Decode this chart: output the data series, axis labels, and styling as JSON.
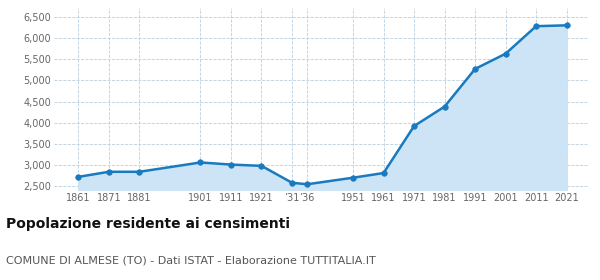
{
  "years": [
    1861,
    1871,
    1881,
    1901,
    1911,
    1921,
    1931,
    1936,
    1951,
    1961,
    1971,
    1981,
    1991,
    2001,
    2011,
    2021
  ],
  "population": [
    2720,
    2840,
    2840,
    3060,
    3010,
    2980,
    2580,
    2545,
    2700,
    2810,
    3920,
    4380,
    5270,
    5630,
    6280,
    6300
  ],
  "line_color": "#1a7abf",
  "fill_color": "#cce4f5",
  "marker_color": "#1a7abf",
  "bg_color": "#ffffff",
  "grid_color": "#b8cfe0",
  "ylim": [
    2400,
    6700
  ],
  "yticks": [
    2500,
    3000,
    3500,
    4000,
    4500,
    5000,
    5500,
    6000,
    6500
  ],
  "ytick_labels": [
    "2,500",
    "3,000",
    "3,500",
    "4,000",
    "4,500",
    "5,000",
    "5,500",
    "6,000",
    "6,500"
  ],
  "x_tick_years": [
    1861,
    1871,
    1881,
    1901,
    1911,
    1921,
    1931,
    1936,
    1951,
    1961,
    1971,
    1981,
    1991,
    2001,
    2011,
    2021
  ],
  "x_tick_labels": [
    "1861",
    "1871",
    "1881",
    "1901",
    "1911",
    "1921",
    "’31",
    "’36",
    "1951",
    "1961",
    "1971",
    "1981",
    "1991",
    "2001",
    "2011",
    "2021"
  ],
  "xlim": [
    1853,
    2028
  ],
  "title": "Popolazione residente ai censimenti",
  "subtitle": "COMUNE DI ALMESE (TO) - Dati ISTAT - Elaborazione TUTTITALIA.IT",
  "title_fontsize": 10,
  "subtitle_fontsize": 8
}
